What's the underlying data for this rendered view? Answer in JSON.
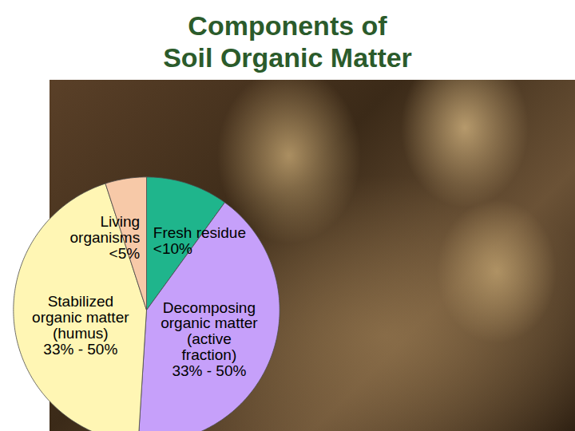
{
  "chart_data": {
    "type": "pie",
    "title": "Components of Soil Organic Matter",
    "categories": [
      "Fresh residue",
      "Decomposing organic matter (active fraction)",
      "Stabilized organic matter (humus)",
      "Living organisms"
    ],
    "values": [
      10,
      41,
      44,
      5
    ],
    "value_labels": [
      "<10%",
      "33% - 50%",
      "33% - 50%",
      "<5%"
    ],
    "colors": [
      "#1fb58c",
      "#c6a0fa",
      "#fff6b4",
      "#f7c9a8"
    ],
    "data_labels": true
  }
}
